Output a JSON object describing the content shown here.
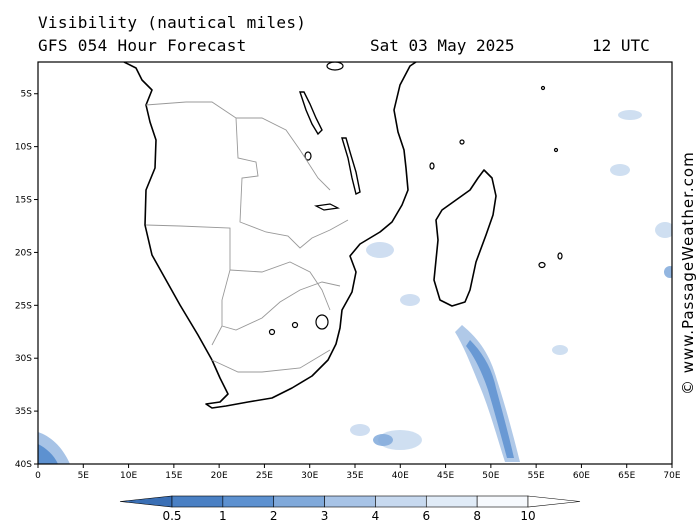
{
  "header": {
    "title": "Visibility (nautical miles)",
    "subtitle": "GFS 054 Hour Forecast",
    "date": "Sat 03 May 2025",
    "time": "12 UTC"
  },
  "credit": "© www.PassageWeather.com",
  "map": {
    "lon_range": [
      0,
      70
    ],
    "lat_range": [
      -40,
      -2
    ],
    "lon_ticks": [
      "0",
      "5E",
      "10E",
      "15E",
      "20E",
      "25E",
      "30E",
      "35E",
      "40E",
      "45E",
      "50E",
      "55E",
      "60E",
      "65E",
      "70E"
    ],
    "lat_ticks": [
      "5S",
      "10S",
      "15S",
      "20S",
      "25S",
      "30S",
      "35S",
      "40S"
    ],
    "land_color": "#ffffff",
    "coast_color": "#000000",
    "border_color": "#999999"
  },
  "colorbar": {
    "labels": [
      "0.5",
      "1",
      "2",
      "3",
      "4",
      "6",
      "8",
      "10"
    ],
    "colors": [
      "#3a6fb5",
      "#4a80c4",
      "#5d91d0",
      "#80a9da",
      "#a7c3e6",
      "#c7d9ef",
      "#e0ebf7",
      "#f6f9fd",
      "#ffffff"
    ]
  }
}
